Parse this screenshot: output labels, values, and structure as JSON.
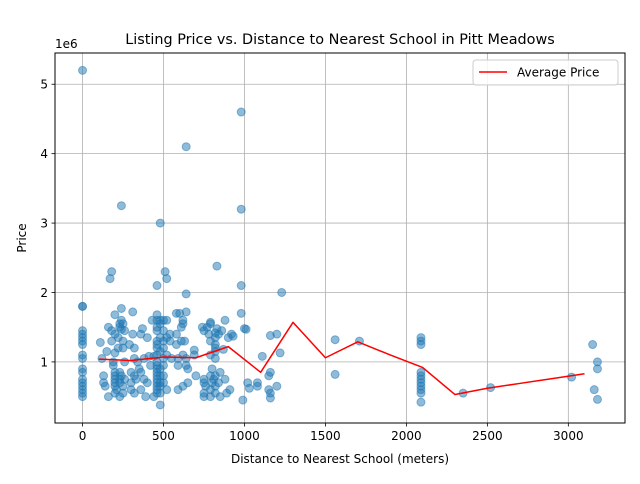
{
  "chart_data": {
    "type": "scatter",
    "title": "Listing Price vs. Distance to Nearest School in Pitt Meadows",
    "xlabel": "Distance to Nearest School (meters)",
    "ylabel": "Price",
    "y_offset_label": "1e6",
    "xlim": [
      -170,
      3350
    ],
    "ylim": [
      120000,
      5450000
    ],
    "x_ticks": [
      0,
      500,
      1000,
      1500,
      2000,
      2500,
      3000
    ],
    "y_ticks": [
      1000000,
      2000000,
      3000000,
      4000000,
      5000000
    ],
    "x_tick_labels": [
      "0",
      "500",
      "1000",
      "1500",
      "2000",
      "2500",
      "3000"
    ],
    "y_tick_labels": [
      "1",
      "2",
      "3",
      "4",
      "5"
    ],
    "grid": true,
    "legend": {
      "position": "top-right",
      "entries": [
        "Average Price"
      ]
    },
    "colors": {
      "scatter": "#1f77b4",
      "line": "#ff0000"
    },
    "series": [
      {
        "kind": "scatter",
        "points": [
          [
            0,
            5200000
          ],
          [
            0,
            1800000
          ],
          [
            0,
            1800000
          ],
          [
            0,
            1450000
          ],
          [
            0,
            1400000
          ],
          [
            0,
            1350000
          ],
          [
            0,
            1300000
          ],
          [
            0,
            1250000
          ],
          [
            0,
            1100000
          ],
          [
            0,
            1050000
          ],
          [
            0,
            900000
          ],
          [
            0,
            850000
          ],
          [
            0,
            750000
          ],
          [
            0,
            700000
          ],
          [
            0,
            650000
          ],
          [
            0,
            600000
          ],
          [
            0,
            550000
          ],
          [
            0,
            500000
          ],
          [
            110,
            1280000
          ],
          [
            120,
            1050000
          ],
          [
            130,
            800000
          ],
          [
            130,
            700000
          ],
          [
            140,
            650000
          ],
          [
            150,
            1150000
          ],
          [
            160,
            1500000
          ],
          [
            160,
            500000
          ],
          [
            170,
            2200000
          ],
          [
            180,
            2300000
          ],
          [
            180,
            1450000
          ],
          [
            180,
            1300000
          ],
          [
            190,
            1000000
          ],
          [
            190,
            950000
          ],
          [
            200,
            1680000
          ],
          [
            200,
            1400000
          ],
          [
            200,
            1130000
          ],
          [
            200,
            850000
          ],
          [
            200,
            800000
          ],
          [
            200,
            750000
          ],
          [
            200,
            700000
          ],
          [
            200,
            650000
          ],
          [
            200,
            550000
          ],
          [
            210,
            600000
          ],
          [
            220,
            1350000
          ],
          [
            220,
            1200000
          ],
          [
            230,
            1550000
          ],
          [
            230,
            1500000
          ],
          [
            230,
            850000
          ],
          [
            230,
            750000
          ],
          [
            230,
            700000
          ],
          [
            230,
            500000
          ],
          [
            240,
            3250000
          ],
          [
            240,
            1770000
          ],
          [
            240,
            1600000
          ],
          [
            240,
            1470000
          ],
          [
            240,
            800000
          ],
          [
            250,
            1550000
          ],
          [
            250,
            1300000
          ],
          [
            250,
            1200000
          ],
          [
            250,
            650000
          ],
          [
            250,
            550000
          ],
          [
            260,
            1450000
          ],
          [
            260,
            1000000
          ],
          [
            260,
            750000
          ],
          [
            290,
            1250000
          ],
          [
            300,
            850000
          ],
          [
            300,
            700000
          ],
          [
            300,
            600000
          ],
          [
            310,
            1720000
          ],
          [
            310,
            1400000
          ],
          [
            320,
            1200000
          ],
          [
            320,
            1050000
          ],
          [
            320,
            800000
          ],
          [
            320,
            550000
          ],
          [
            330,
            750000
          ],
          [
            340,
            1000000
          ],
          [
            350,
            900000
          ],
          [
            360,
            1400000
          ],
          [
            360,
            850000
          ],
          [
            360,
            600000
          ],
          [
            370,
            1480000
          ],
          [
            380,
            1050000
          ],
          [
            380,
            750000
          ],
          [
            390,
            500000
          ],
          [
            400,
            1350000
          ],
          [
            400,
            700000
          ],
          [
            410,
            1080000
          ],
          [
            420,
            950000
          ],
          [
            430,
            1600000
          ],
          [
            440,
            1080000
          ],
          [
            440,
            500000
          ],
          [
            460,
            2100000
          ],
          [
            460,
            1680000
          ],
          [
            460,
            1600000
          ],
          [
            460,
            1500000
          ],
          [
            460,
            1450000
          ],
          [
            460,
            1300000
          ],
          [
            460,
            1250000
          ],
          [
            460,
            1200000
          ],
          [
            460,
            1100000
          ],
          [
            460,
            1000000
          ],
          [
            460,
            950000
          ],
          [
            460,
            900000
          ],
          [
            460,
            850000
          ],
          [
            460,
            800000
          ],
          [
            460,
            750000
          ],
          [
            460,
            700000
          ],
          [
            460,
            650000
          ],
          [
            460,
            600000
          ],
          [
            460,
            550000
          ],
          [
            480,
            3000000
          ],
          [
            480,
            1600000
          ],
          [
            480,
            1550000
          ],
          [
            480,
            1350000
          ],
          [
            480,
            1150000
          ],
          [
            480,
            900000
          ],
          [
            480,
            800000
          ],
          [
            480,
            700000
          ],
          [
            480,
            650000
          ],
          [
            480,
            550000
          ],
          [
            480,
            380000
          ],
          [
            500,
            1600000
          ],
          [
            500,
            1450000
          ],
          [
            500,
            1300000
          ],
          [
            500,
            1200000
          ],
          [
            500,
            1050000
          ],
          [
            500,
            950000
          ],
          [
            500,
            800000
          ],
          [
            500,
            700000
          ],
          [
            510,
            2300000
          ],
          [
            520,
            2200000
          ],
          [
            520,
            1600000
          ],
          [
            520,
            1350000
          ],
          [
            520,
            1100000
          ],
          [
            520,
            600000
          ],
          [
            540,
            1400000
          ],
          [
            540,
            1300000
          ],
          [
            550,
            1050000
          ],
          [
            580,
            1700000
          ],
          [
            580,
            1400000
          ],
          [
            580,
            1250000
          ],
          [
            590,
            1050000
          ],
          [
            590,
            950000
          ],
          [
            590,
            600000
          ],
          [
            600,
            1700000
          ],
          [
            610,
            1500000
          ],
          [
            610,
            1300000
          ],
          [
            620,
            1600000
          ],
          [
            620,
            1550000
          ],
          [
            620,
            1100000
          ],
          [
            620,
            650000
          ],
          [
            630,
            1300000
          ],
          [
            640,
            4100000
          ],
          [
            640,
            1980000
          ],
          [
            640,
            1720000
          ],
          [
            640,
            1050000
          ],
          [
            640,
            950000
          ],
          [
            650,
            900000
          ],
          [
            650,
            700000
          ],
          [
            690,
            1170000
          ],
          [
            690,
            1100000
          ],
          [
            700,
            800000
          ],
          [
            740,
            1500000
          ],
          [
            750,
            1450000
          ],
          [
            750,
            750000
          ],
          [
            750,
            700000
          ],
          [
            750,
            550000
          ],
          [
            750,
            500000
          ],
          [
            760,
            650000
          ],
          [
            770,
            1500000
          ],
          [
            780,
            1400000
          ],
          [
            790,
            1570000
          ],
          [
            790,
            1550000
          ],
          [
            790,
            1300000
          ],
          [
            790,
            1100000
          ],
          [
            790,
            800000
          ],
          [
            790,
            600000
          ],
          [
            790,
            500000
          ],
          [
            800,
            900000
          ],
          [
            800,
            700000
          ],
          [
            810,
            750000
          ],
          [
            820,
            1420000
          ],
          [
            820,
            1350000
          ],
          [
            820,
            1250000
          ],
          [
            820,
            1200000
          ],
          [
            820,
            1150000
          ],
          [
            820,
            1050000
          ],
          [
            820,
            800000
          ],
          [
            820,
            650000
          ],
          [
            820,
            550000
          ],
          [
            830,
            2380000
          ],
          [
            830,
            1480000
          ],
          [
            840,
            1400000
          ],
          [
            840,
            700000
          ],
          [
            850,
            850000
          ],
          [
            850,
            500000
          ],
          [
            860,
            1450000
          ],
          [
            870,
            1180000
          ],
          [
            880,
            1600000
          ],
          [
            880,
            750000
          ],
          [
            890,
            550000
          ],
          [
            900,
            1350000
          ],
          [
            910,
            600000
          ],
          [
            920,
            1400000
          ],
          [
            930,
            1370000
          ],
          [
            980,
            4600000
          ],
          [
            980,
            3200000
          ],
          [
            980,
            2100000
          ],
          [
            980,
            1700000
          ],
          [
            990,
            450000
          ],
          [
            1000,
            1480000
          ],
          [
            1010,
            1470000
          ],
          [
            1020,
            700000
          ],
          [
            1030,
            620000
          ],
          [
            1080,
            700000
          ],
          [
            1080,
            650000
          ],
          [
            1110,
            1080000
          ],
          [
            1150,
            800000
          ],
          [
            1150,
            600000
          ],
          [
            1160,
            1380000
          ],
          [
            1160,
            850000
          ],
          [
            1160,
            550000
          ],
          [
            1160,
            480000
          ],
          [
            1200,
            1400000
          ],
          [
            1200,
            650000
          ],
          [
            1220,
            1130000
          ],
          [
            1230,
            2000000
          ],
          [
            1560,
            1320000
          ],
          [
            1560,
            820000
          ],
          [
            1710,
            1300000
          ],
          [
            2090,
            1350000
          ],
          [
            2090,
            1300000
          ],
          [
            2090,
            1250000
          ],
          [
            2090,
            850000
          ],
          [
            2090,
            800000
          ],
          [
            2090,
            750000
          ],
          [
            2090,
            700000
          ],
          [
            2090,
            650000
          ],
          [
            2090,
            600000
          ],
          [
            2090,
            550000
          ],
          [
            2090,
            420000
          ],
          [
            2350,
            550000
          ],
          [
            2520,
            630000
          ],
          [
            3020,
            780000
          ],
          [
            3150,
            1250000
          ],
          [
            3160,
            600000
          ],
          [
            3180,
            1000000
          ],
          [
            3180,
            900000
          ],
          [
            3180,
            460000
          ]
        ]
      },
      {
        "kind": "line",
        "name": "Average Price",
        "x": [
          100,
          300,
          500,
          700,
          900,
          1100,
          1300,
          1500,
          1700,
          1900,
          2100,
          2300,
          2500,
          2700,
          2900,
          3100
        ],
        "y": [
          1040000,
          1020000,
          1070000,
          1060000,
          1220000,
          850000,
          1570000,
          1060000,
          1290000,
          1100000,
          920000,
          530000,
          620000,
          690000,
          760000,
          830000
        ]
      }
    ]
  }
}
